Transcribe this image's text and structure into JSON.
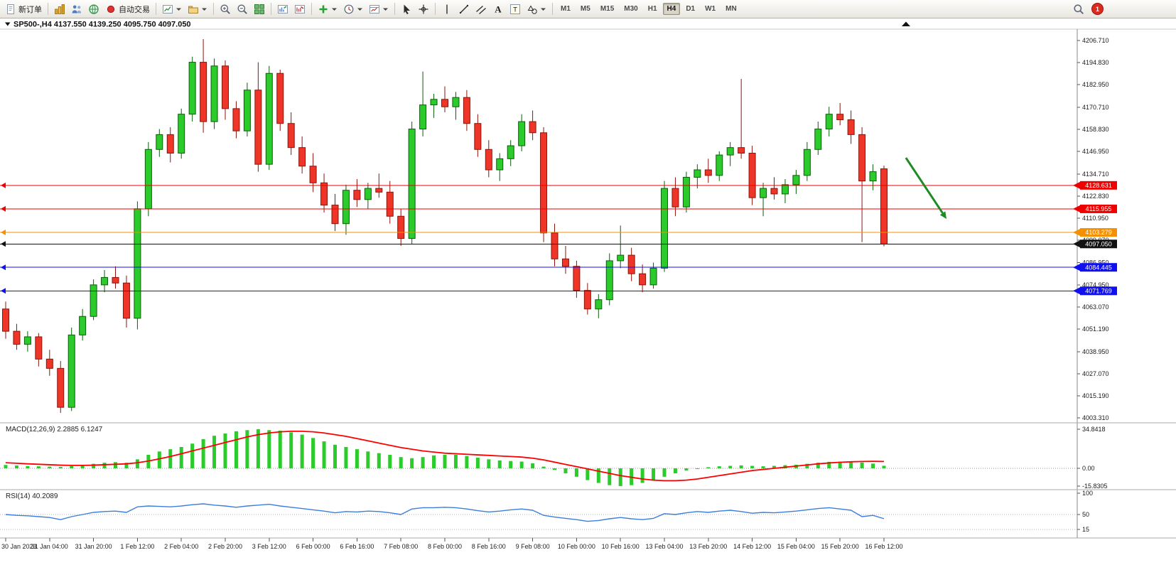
{
  "toolbar": {
    "new_order_label": "新订单",
    "autotrading_label": "自动交易",
    "badge": "1",
    "groups": [
      [
        {
          "name": "new-order-button",
          "icon": "document",
          "label": "新订单"
        }
      ],
      [
        {
          "name": "market-watch-button",
          "icon": "gold-bars"
        },
        {
          "name": "accounts-button",
          "icon": "people"
        },
        {
          "name": "community-button",
          "icon": "globe"
        },
        {
          "name": "autotrading-button",
          "icon": "red-dot",
          "label": "自动交易"
        }
      ],
      [
        {
          "name": "new-chart-button",
          "icon": "new-chart",
          "caret": true
        },
        {
          "name": "profiles-button",
          "icon": "profiles",
          "caret": true
        }
      ],
      [
        {
          "name": "zoom-in-button",
          "icon": "zoom-in"
        },
        {
          "name": "zoom-out-button",
          "icon": "zoom-out"
        },
        {
          "name": "tile-windows-button",
          "icon": "tile-windows"
        }
      ],
      [
        {
          "name": "bar-chart-button",
          "icon": "bar-chart-up"
        },
        {
          "name": "line-chart-button",
          "icon": "bar-chart-down"
        }
      ],
      [
        {
          "name": "add-indicator-button",
          "icon": "plus",
          "caret": true
        },
        {
          "name": "period-button",
          "icon": "clock",
          "caret": true
        },
        {
          "name": "template-button",
          "icon": "template",
          "caret": true
        }
      ],
      [
        {
          "name": "cursor-button",
          "icon": "cursor"
        },
        {
          "name": "crosshair-button",
          "icon": "crosshair"
        }
      ],
      [
        {
          "name": "vertical-line-button",
          "icon": "vertical-line"
        },
        {
          "name": "trendline-button",
          "icon": "trendline"
        },
        {
          "name": "channel-button",
          "icon": "channel"
        },
        {
          "name": "text-button",
          "icon": "text-a"
        },
        {
          "name": "label-button",
          "icon": "text-label"
        },
        {
          "name": "shapes-button",
          "icon": "shapes",
          "caret": true
        }
      ]
    ],
    "timeframes": [
      "M1",
      "M5",
      "M15",
      "M30",
      "H1",
      "H4",
      "D1",
      "W1",
      "MN"
    ],
    "active_timeframe": "H4"
  },
  "chart": {
    "title": "SP500-,H4 4137.550 4139.250 4095.750 4097.050"
  },
  "colors": {
    "up_fill": "#2bcb2b",
    "up_border": "#0b5e0b",
    "down_fill": "#ee3527",
    "down_border": "#8c140a",
    "macd_hist": "#2bcb2b",
    "macd_signal": "#ff0000",
    "rsi_line": "#3c7edb",
    "axis_text": "#1a1a1a",
    "arrow": "#1f8b24"
  },
  "chart_data": {
    "type": "candlestick",
    "symbol": "SP500-",
    "timeframe": "H4",
    "ylim": [
      4003.31,
      4206.71
    ],
    "price_ticks": [
      "4206.710",
      "4194.830",
      "4182.950",
      "4170.710",
      "4158.830",
      "4146.950",
      "4134.710",
      "4122.830",
      "4110.950",
      "4099.070",
      "4086.950",
      "4074.950",
      "4063.070",
      "4051.190",
      "4038.950",
      "4027.070",
      "4015.190",
      "4003.310"
    ],
    "time_labels": [
      "30 Jan 2023",
      "31 Jan 04:00",
      "31 Jan 20:00",
      "1 Feb 12:00",
      "2 Feb 04:00",
      "2 Feb 20:00",
      "3 Feb 12:00",
      "6 Feb 00:00",
      "6 Feb 16:00",
      "7 Feb 08:00",
      "8 Feb 00:00",
      "8 Feb 16:00",
      "9 Feb 08:00",
      "10 Feb 00:00",
      "10 Feb 16:00",
      "13 Feb 04:00",
      "13 Feb 20:00",
      "14 Feb 12:00",
      "15 Feb 04:00",
      "15 Feb 20:00",
      "16 Feb 12:00"
    ],
    "bars_per_label": 4,
    "current_price": 4097.05,
    "hlines": [
      {
        "price": 4128.631,
        "label": "4128.631",
        "color": "#ee0000"
      },
      {
        "price": 4115.955,
        "label": "4115.955",
        "color": "#ee0000"
      },
      {
        "price": 4103.279,
        "label": "4103.279",
        "color": "#f59100"
      },
      {
        "price": 4097.05,
        "label": "4097.050",
        "color": "#111111"
      },
      {
        "price": 4084.445,
        "label": "4084.445",
        "color": "#1010ee"
      },
      {
        "price": 4071.769,
        "label": "4071.769",
        "color": "#1010ee"
      }
    ],
    "arrow_annotation": {
      "from_bar": 82,
      "from_price": 4143.5,
      "to_bar": 85.7,
      "to_price": 4110.5
    },
    "candles": [
      [
        4062,
        4066,
        4046,
        4050
      ],
      [
        4050,
        4054,
        4040,
        4043
      ],
      [
        4043,
        4050,
        4039,
        4047
      ],
      [
        4047,
        4049,
        4031,
        4035
      ],
      [
        4035,
        4040,
        4026,
        4030
      ],
      [
        4030,
        4034,
        4006,
        4009
      ],
      [
        4009,
        4052,
        4007,
        4048
      ],
      [
        4048,
        4062,
        4045,
        4058
      ],
      [
        4058,
        4078,
        4056,
        4075
      ],
      [
        4075,
        4083,
        4071,
        4079
      ],
      [
        4079,
        4085,
        4073,
        4076
      ],
      [
        4076,
        4080,
        4052,
        4057
      ],
      [
        4057,
        4120,
        4051,
        4116
      ],
      [
        4116,
        4152,
        4112,
        4148
      ],
      [
        4148,
        4159,
        4144,
        4156
      ],
      [
        4156,
        4160,
        4141,
        4146
      ],
      [
        4146,
        4170,
        4143,
        4167
      ],
      [
        4167,
        4198,
        4163,
        4195
      ],
      [
        4195,
        4207.5,
        4157,
        4163
      ],
      [
        4163,
        4197,
        4159,
        4193
      ],
      [
        4193,
        4196,
        4164,
        4170
      ],
      [
        4170,
        4174,
        4154,
        4158
      ],
      [
        4158,
        4184,
        4155,
        4180
      ],
      [
        4180,
        4195,
        4136,
        4140
      ],
      [
        4140,
        4193,
        4137,
        4189
      ],
      [
        4189,
        4191,
        4158,
        4162
      ],
      [
        4162,
        4168,
        4145,
        4149
      ],
      [
        4149,
        4155,
        4135,
        4139
      ],
      [
        4139,
        4146,
        4125,
        4130
      ],
      [
        4130,
        4135,
        4114,
        4118
      ],
      [
        4118,
        4124,
        4104,
        4108
      ],
      [
        4108,
        4129,
        4102,
        4126
      ],
      [
        4126,
        4132,
        4117,
        4121
      ],
      [
        4121,
        4130,
        4116,
        4127
      ],
      [
        4127,
        4135,
        4122,
        4125
      ],
      [
        4125,
        4131,
        4108,
        4112
      ],
      [
        4112,
        4116,
        4096,
        4100
      ],
      [
        4100,
        4163,
        4097,
        4159
      ],
      [
        4159,
        4190,
        4155,
        4172
      ],
      [
        4172,
        4178,
        4165,
        4175
      ],
      [
        4175,
        4182,
        4168,
        4171
      ],
      [
        4171,
        4179,
        4164,
        4176
      ],
      [
        4176,
        4180,
        4158,
        4162
      ],
      [
        4162,
        4167,
        4144,
        4148
      ],
      [
        4148,
        4153,
        4133,
        4137
      ],
      [
        4137,
        4146,
        4131,
        4143
      ],
      [
        4143,
        4153,
        4139,
        4150
      ],
      [
        4150,
        4167,
        4147,
        4163
      ],
      [
        4163,
        4169,
        4153,
        4157
      ],
      [
        4157,
        4160,
        4098,
        4103
      ],
      [
        4103,
        4108,
        4085,
        4089
      ],
      [
        4089,
        4096,
        4081,
        4085
      ],
      [
        4085,
        4088,
        4068,
        4072
      ],
      [
        4072,
        4076,
        4059,
        4062
      ],
      [
        4062,
        4070,
        4057,
        4067
      ],
      [
        4067,
        4092,
        4064,
        4088
      ],
      [
        4088,
        4107,
        4084,
        4091
      ],
      [
        4091,
        4095,
        4077,
        4081
      ],
      [
        4081,
        4086,
        4071,
        4075
      ],
      [
        4075,
        4087,
        4073,
        4084
      ],
      [
        4084,
        4131,
        4082,
        4127
      ],
      [
        4127,
        4133,
        4112,
        4117
      ],
      [
        4117,
        4136,
        4114,
        4133
      ],
      [
        4133,
        4140,
        4127,
        4137
      ],
      [
        4137,
        4143,
        4130,
        4134
      ],
      [
        4134,
        4147,
        4131,
        4145
      ],
      [
        4145,
        4152,
        4139,
        4149
      ],
      [
        4149,
        4186,
        4143,
        4146
      ],
      [
        4146,
        4150,
        4118,
        4122
      ],
      [
        4122,
        4130,
        4112,
        4127
      ],
      [
        4127,
        4133,
        4121,
        4124
      ],
      [
        4124,
        4132,
        4119,
        4129
      ],
      [
        4129,
        4137,
        4124,
        4134
      ],
      [
        4134,
        4152,
        4131,
        4148
      ],
      [
        4148,
        4163,
        4145,
        4159
      ],
      [
        4159,
        4171,
        4155,
        4167
      ],
      [
        4167,
        4173,
        4161,
        4164
      ],
      [
        4164,
        4169,
        4151,
        4156
      ],
      [
        4156,
        4160,
        4098,
        4131
      ],
      [
        4131,
        4140,
        4126,
        4136
      ],
      [
        4137.55,
        4139.25,
        4095.75,
        4097.05
      ]
    ],
    "indicators": {
      "macd": {
        "label": "MACD(12,26,9) 2.2885 6.1247",
        "axis": [
          "34.8418",
          "0.00",
          "-15.8305"
        ],
        "histogram": [
          3,
          2.5,
          2,
          1.8,
          1.5,
          1.2,
          2,
          3,
          4,
          5,
          5.5,
          5,
          8,
          12,
          15,
          17,
          19,
          22,
          26,
          29,
          31,
          33,
          34,
          34.8,
          34,
          33.5,
          32,
          30,
          27,
          24,
          21,
          19,
          17,
          15,
          13.5,
          12,
          10,
          9,
          10,
          11.5,
          12,
          12,
          11,
          9.5,
          8,
          7,
          6.5,
          6,
          4.5,
          1.5,
          -1.5,
          -4.5,
          -7.5,
          -10.5,
          -13,
          -15,
          -15.8,
          -15,
          -13,
          -10.5,
          -7.5,
          -4.5,
          -2,
          -0.5,
          1,
          1.8,
          2.2,
          2.6,
          2.2,
          1.8,
          2.2,
          2.8,
          3.2,
          4,
          5,
          5.8,
          6,
          5.8,
          5.2,
          4.2,
          2.3
        ],
        "signal": [
          5,
          4.5,
          4,
          3.6,
          3.2,
          2.8,
          2.6,
          2.6,
          2.8,
          3.2,
          3.6,
          4,
          5,
          6.5,
          8.5,
          10.5,
          13,
          15.5,
          18,
          20.5,
          23,
          25.5,
          28,
          30,
          31.5,
          32.5,
          33,
          33,
          32.5,
          31.5,
          30,
          28.5,
          26.5,
          24.5,
          22.5,
          20.5,
          18.5,
          17,
          15.5,
          14.5,
          13.5,
          13,
          12.5,
          12,
          11.5,
          11,
          10.5,
          10,
          9,
          7.5,
          5.5,
          3.5,
          1.5,
          -0.5,
          -2.5,
          -4.5,
          -6.5,
          -8,
          -9.5,
          -10.5,
          -11,
          -11,
          -10.5,
          -9.5,
          -8,
          -6.5,
          -5,
          -3.5,
          -2,
          -1,
          0,
          1,
          2,
          3,
          4,
          4.8,
          5.4,
          5.8,
          6.1,
          6.2,
          6.1
        ]
      },
      "rsi": {
        "label": "RSI(14) 40.2089",
        "axis": [
          "100",
          "50",
          "15"
        ],
        "values": [
          50,
          48,
          47,
          45,
          43,
          38,
          45,
          50,
          55,
          57,
          58,
          55,
          68,
          70,
          69,
          68,
          70,
          73,
          75,
          72,
          70,
          67,
          70,
          72,
          74,
          70,
          67,
          64,
          61,
          58,
          54,
          57,
          56,
          58,
          57,
          54,
          50,
          63,
          66,
          66,
          67,
          66,
          63,
          59,
          56,
          58,
          61,
          63,
          60,
          48,
          44,
          41,
          38,
          34,
          36,
          40,
          43,
          40,
          38,
          41,
          52,
          50,
          54,
          57,
          55,
          58,
          60,
          57,
          53,
          55,
          54,
          56,
          58,
          61,
          64,
          66,
          63,
          60,
          45,
          48,
          40.2
        ]
      }
    }
  }
}
